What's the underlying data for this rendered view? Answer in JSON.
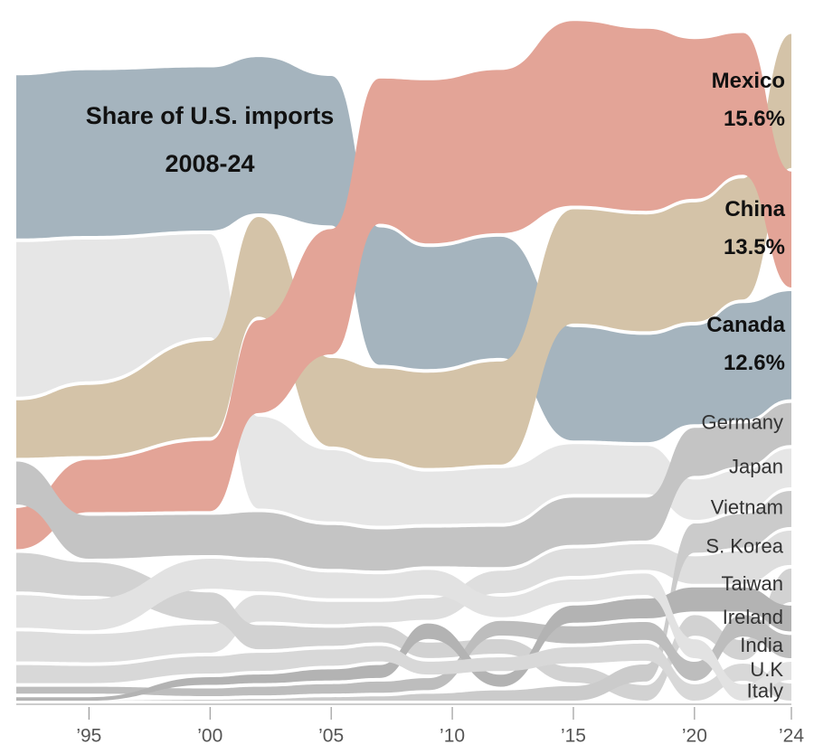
{
  "chart_data": {
    "type": "ranked-stream",
    "title": "Share of U.S. imports",
    "subtitle": "2008-24",
    "x": [
      1992,
      1995,
      2000,
      2002,
      2005,
      2007,
      2009,
      2012,
      2015,
      2018,
      2020,
      2022,
      2024
    ],
    "xlim": [
      1992,
      2024
    ],
    "xticks": [
      {
        "value": 1995,
        "label": "’95"
      },
      {
        "value": 2000,
        "label": "’00"
      },
      {
        "value": 2005,
        "label": "’05"
      },
      {
        "value": 2010,
        "label": "’10"
      },
      {
        "value": 2015,
        "label": "’15"
      },
      {
        "value": 2020,
        "label": "’20"
      },
      {
        "value": 2024,
        "label": "’24"
      }
    ],
    "series": [
      {
        "name": "Canada",
        "color": "#a5b4be",
        "values": [
          19.0,
          19.3,
          19.0,
          18.2,
          17.4,
          16.0,
          14.2,
          14.1,
          13.2,
          12.5,
          11.5,
          13.6,
          12.6
        ],
        "value_labels": [
          null,
          null,
          null,
          null,
          null,
          null,
          null,
          null,
          null,
          null,
          null,
          null,
          "12.6%"
        ]
      },
      {
        "name": "Japan",
        "color": "#e6e6e6",
        "values": [
          18.0,
          16.5,
          12.0,
          10.7,
          8.3,
          7.4,
          6.1,
          6.4,
          5.8,
          5.6,
          4.7,
          4.7,
          4.5
        ]
      },
      {
        "name": "Mexico",
        "color": "#d4c3a8",
        "values": [
          6.7,
          8.3,
          11.2,
          11.6,
          10.3,
          10.5,
          11.1,
          12.0,
          13.3,
          13.6,
          13.9,
          14.1,
          15.6
        ],
        "value_labels": [
          null,
          null,
          null,
          null,
          null,
          null,
          null,
          null,
          null,
          null,
          null,
          null,
          "15.6%"
        ]
      },
      {
        "name": "China",
        "color": "#e3a497",
        "values": [
          4.8,
          6.1,
          8.2,
          10.8,
          14.6,
          16.9,
          19.0,
          19.0,
          21.5,
          21.2,
          18.6,
          16.5,
          13.5
        ],
        "value_labels": [
          null,
          null,
          null,
          null,
          null,
          null,
          null,
          null,
          null,
          null,
          null,
          null,
          "13.5%"
        ]
      },
      {
        "name": "Germany",
        "color": "#c4c4c4",
        "values": [
          5.0,
          5.0,
          4.7,
          5.3,
          5.1,
          4.8,
          4.5,
          4.7,
          5.5,
          5.0,
          5.6,
          5.0,
          4.9
        ]
      },
      {
        "name": "S. Korea",
        "color": "#dedede",
        "values": [
          3.5,
          3.3,
          3.3,
          3.1,
          2.6,
          2.4,
          2.5,
          2.6,
          3.2,
          3.0,
          3.2,
          3.8,
          4.0
        ]
      },
      {
        "name": "Taiwan",
        "color": "#d2d2d2",
        "values": [
          4.5,
          3.9,
          3.3,
          2.8,
          2.1,
          1.9,
          1.8,
          1.7,
          1.8,
          1.8,
          2.4,
          2.3,
          3.9
        ]
      },
      {
        "name": "Vietnam",
        "color": "#cbcbcb",
        "values": [
          0,
          0,
          0.1,
          0.2,
          0.4,
          0.5,
          0.8,
          1.2,
          1.7,
          2.0,
          3.4,
          3.9,
          4.2
        ]
      },
      {
        "name": "India",
        "color": "#bdbdbd",
        "values": [
          0.8,
          0.8,
          0.9,
          1.0,
          1.1,
          1.3,
          1.4,
          1.7,
          2.0,
          2.1,
          2.2,
          2.5,
          2.7
        ]
      },
      {
        "name": "Ireland",
        "color": "#b3b3b3",
        "values": [
          0.4,
          0.4,
          0.9,
          1.0,
          1.3,
          1.5,
          1.8,
          1.4,
          2.0,
          2.3,
          2.8,
          2.8,
          3.0
        ]
      },
      {
        "name": "Italy",
        "color": "#d8d8d8",
        "values": [
          2.1,
          2.0,
          2.0,
          2.1,
          1.9,
          1.8,
          1.5,
          1.6,
          1.9,
          2.0,
          1.9,
          2.0,
          2.0
        ]
      },
      {
        "name": "U.K",
        "color": "#e2e2e2",
        "values": [
          3.8,
          3.6,
          3.5,
          3.5,
          3.0,
          2.8,
          2.9,
          2.4,
          2.6,
          2.5,
          2.2,
          1.9,
          2.1
        ]
      }
    ]
  }
}
